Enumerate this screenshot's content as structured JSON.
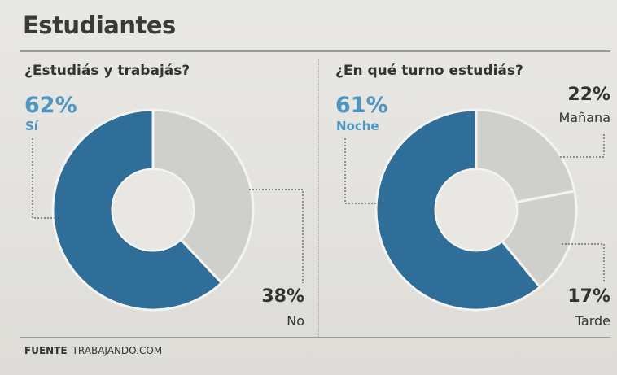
{
  "title": "Estudiantes",
  "source": {
    "label": "FUENTE",
    "value": "TRABAJANDO.COM"
  },
  "chart_data": [
    {
      "type": "pie",
      "title": "¿Estudiás y trabajás?",
      "slices": [
        {
          "label": "Sí",
          "value": 62,
          "pct_text": "62%",
          "color": "#2e6e99"
        },
        {
          "label": "No",
          "value": 38,
          "pct_text": "38%",
          "color": "#cfcfcc"
        }
      ]
    },
    {
      "type": "pie",
      "title": "¿En qué turno estudiás?",
      "slices": [
        {
          "label": "Noche",
          "value": 61,
          "pct_text": "61%",
          "color": "#2e6e99"
        },
        {
          "label": "Mañana",
          "value": 22,
          "pct_text": "22%",
          "color": "#cfcfcc"
        },
        {
          "label": "Tarde",
          "value": 17,
          "pct_text": "17%",
          "color": "#cfcfcc"
        }
      ]
    }
  ]
}
